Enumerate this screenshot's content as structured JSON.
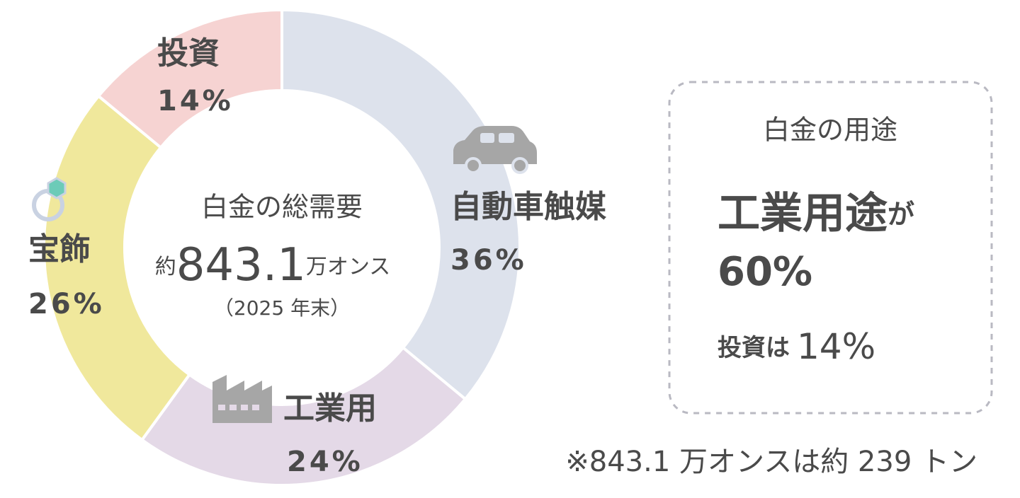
{
  "chart_data": {
    "type": "donut",
    "categories": [
      "自動車触媒",
      "工業用",
      "宝飾",
      "投資"
    ],
    "values": [
      36,
      24,
      26,
      14
    ],
    "value_labels": [
      "36%",
      "24%",
      "26%",
      "14%"
    ],
    "colors": [
      "#dde2ec",
      "#e4d9e7",
      "#f0e89c",
      "#f6d3d2"
    ],
    "center": {
      "title": "白金の総需要",
      "prefix": "約",
      "amount": "843.1",
      "unit": "万オンス",
      "note": "（2025 年末）"
    },
    "box": {
      "title": "白金の用途",
      "headline": "工業用途",
      "particle": "が",
      "headline_value": "60%",
      "sub_label": "投資は",
      "sub_value": "14%"
    },
    "footnote": "※843.1 万オンスは約 239 トン"
  }
}
